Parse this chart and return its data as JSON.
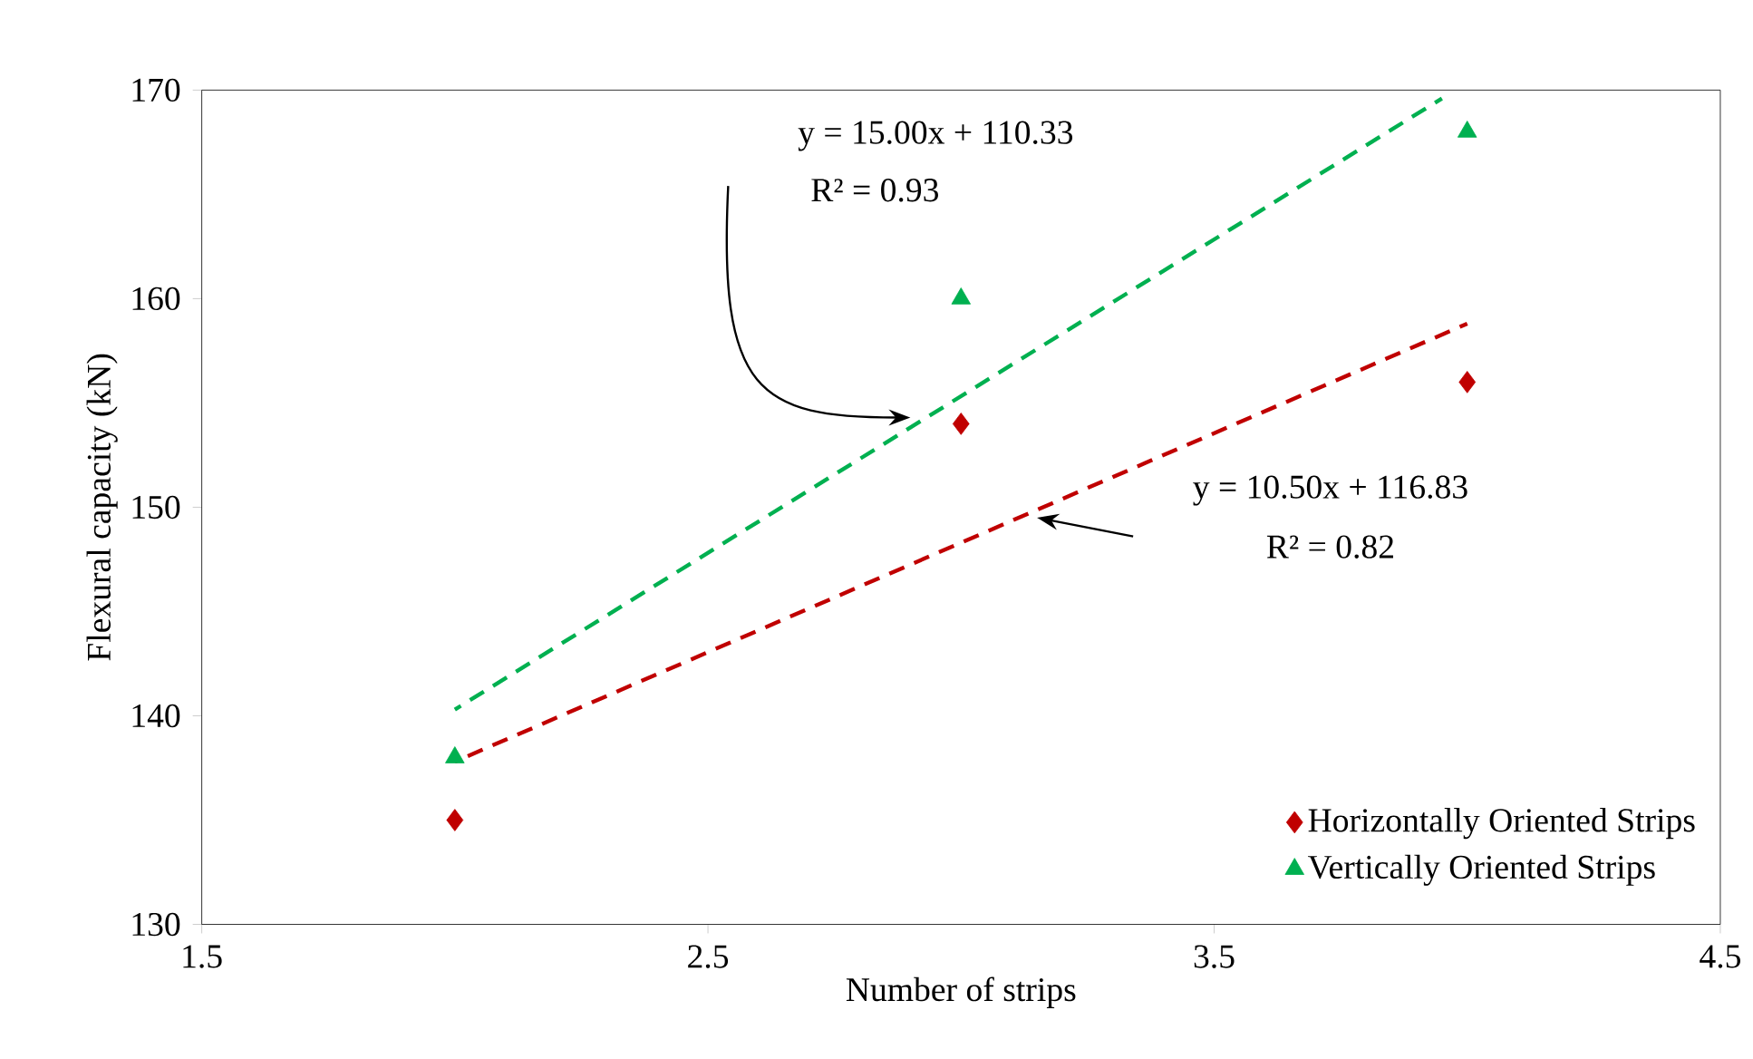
{
  "chart_data": {
    "type": "scatter",
    "xlabel": "Number of strips",
    "ylabel": "Flexural capacity (kN)",
    "xlim": [
      1.5,
      4.5
    ],
    "xticks": [
      1.5,
      2.5,
      3.5,
      4.5
    ],
    "ylim": [
      130,
      170
    ],
    "yticks": [
      130,
      140,
      150,
      160,
      170
    ],
    "grid": false,
    "legend": "bottom right",
    "series": [
      {
        "name": "Horizontally Oriented Strips",
        "type": "scatter",
        "color": "#c00000",
        "marker": "diamond",
        "x": [
          2,
          3,
          4
        ],
        "values": [
          135,
          154,
          156
        ]
      },
      {
        "name": "Vertically Oriented Strips",
        "type": "scatter",
        "color": "#00b050",
        "marker": "triangle",
        "x": [
          2,
          3,
          4
        ],
        "values": [
          138,
          160,
          168
        ]
      },
      {
        "type": "line",
        "color": "#c00000",
        "line_style": "dashed",
        "marker": "none",
        "x": [
          2,
          4
        ],
        "values": [
          137.8,
          158.8
        ]
      },
      {
        "type": "line",
        "color": "#00b050",
        "line_style": "dashed",
        "marker": "none",
        "x": [
          2,
          3.95
        ],
        "values": [
          140.3,
          169.6
        ]
      }
    ],
    "annotations": [
      "y = 15.00x + 110.33",
      "R² = 0.93",
      "y = 10.50x + 116.83",
      "R² = 0.82"
    ]
  }
}
